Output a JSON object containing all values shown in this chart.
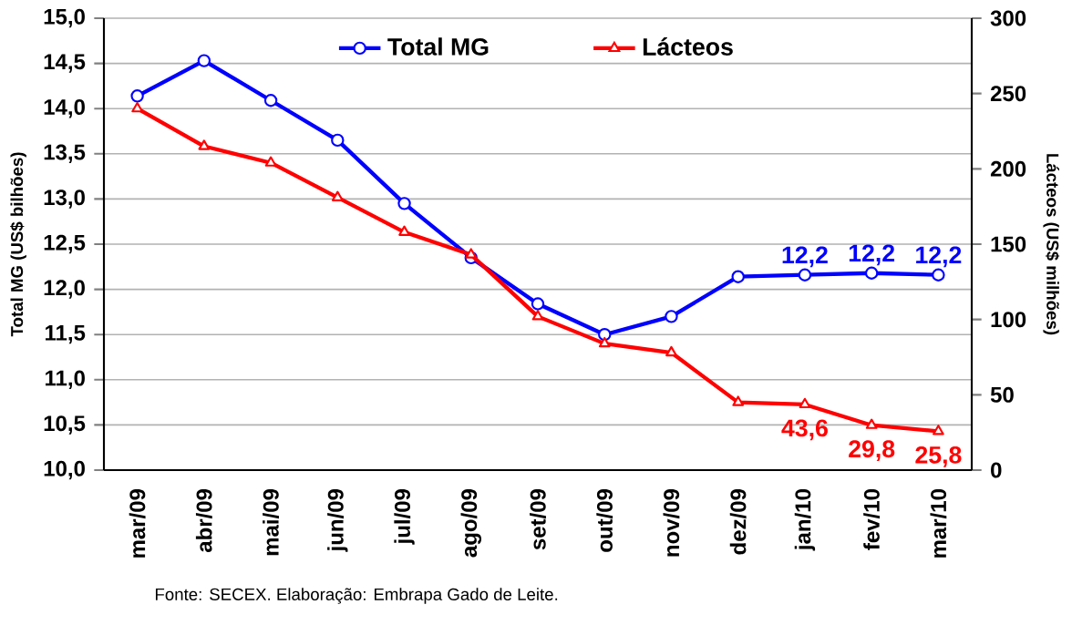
{
  "chart_data": {
    "type": "line",
    "categories": [
      "mar/09",
      "abr/09",
      "mai/09",
      "jun/09",
      "jul/09",
      "ago/09",
      "set/09",
      "out/09",
      "nov/09",
      "dez/09",
      "jan/10",
      "fev/10",
      "mar/10"
    ],
    "series": [
      {
        "name": "Total MG",
        "color": "#0000ff",
        "marker": "circle",
        "values": [
          14.14,
          14.53,
          14.09,
          13.65,
          12.95,
          12.35,
          11.84,
          11.5,
          11.7,
          12.14,
          12.16,
          12.18,
          12.16
        ],
        "value_labels": [
          null,
          null,
          null,
          null,
          null,
          null,
          null,
          null,
          null,
          null,
          "12,2",
          "12,2",
          "12,2"
        ]
      },
      {
        "name": "Lácteos",
        "color": "#ff0000",
        "marker": "triangle",
        "axis": "y2",
        "values": [
          240,
          215,
          204,
          181,
          158,
          143,
          102,
          84,
          78,
          45,
          43.6,
          29.8,
          25.8
        ],
        "value_labels": [
          null,
          null,
          null,
          null,
          null,
          null,
          null,
          null,
          null,
          null,
          "43,6",
          "29,8",
          "25,8"
        ]
      }
    ],
    "ylabel": "Total MG (US$ bilhões)",
    "y2label": "Lácteos (US$ milhões)",
    "ylim": [
      10,
      15
    ],
    "yticks": [
      {
        "value": 10,
        "label": "10,0"
      },
      {
        "value": 10.5,
        "label": "10,5"
      },
      {
        "value": 11,
        "label": "11,0"
      },
      {
        "value": 11.5,
        "label": "11,5"
      },
      {
        "value": 12,
        "label": "12,0"
      },
      {
        "value": 12.5,
        "label": "12,5"
      },
      {
        "value": 13,
        "label": "13,0"
      },
      {
        "value": 13.5,
        "label": "13,5"
      },
      {
        "value": 14,
        "label": "14,0"
      },
      {
        "value": 14.5,
        "label": "14,5"
      },
      {
        "value": 15,
        "label": "15,0"
      }
    ],
    "y2lim": [
      0,
      300
    ],
    "y2ticks": [
      0,
      50,
      100,
      150,
      200,
      250,
      300
    ],
    "grid": "y",
    "legend": "top",
    "annotations": [
      "Fonte: SECEX. Elaboração: Embrapa Gado de Leite."
    ]
  }
}
